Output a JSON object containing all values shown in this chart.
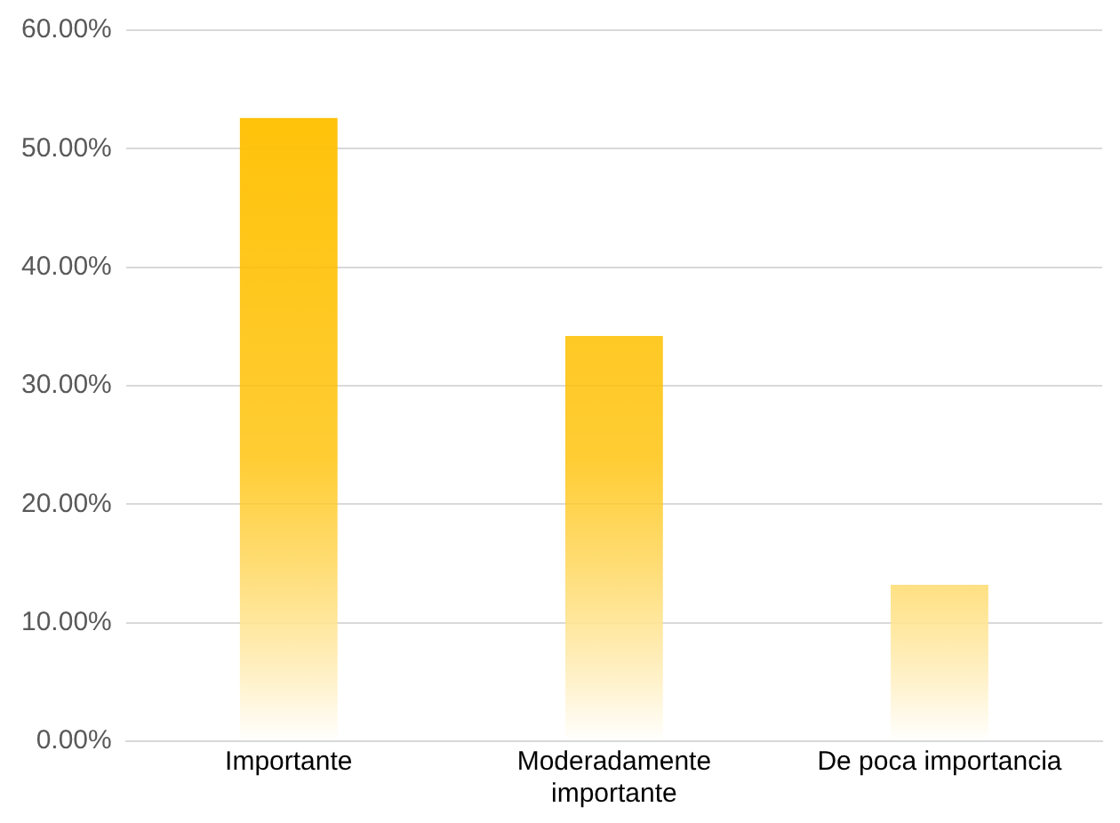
{
  "chart_data": {
    "type": "bar",
    "categories": [
      "Importante",
      "Moderadamente importante",
      "De poca importancia"
    ],
    "values": [
      52.6,
      34.2,
      13.2
    ],
    "color": "#ffc000",
    "ylim": [
      0,
      60
    ],
    "yticks": [
      {
        "value": 0,
        "label": "0.00%"
      },
      {
        "value": 10,
        "label": "10.00%"
      },
      {
        "value": 20,
        "label": "20.00%"
      },
      {
        "value": 30,
        "label": "30.00%"
      },
      {
        "value": 40,
        "label": "40.00%"
      },
      {
        "value": 50,
        "label": "50.00%"
      },
      {
        "value": 60,
        "label": "60.00%"
      }
    ],
    "grid": "y"
  }
}
